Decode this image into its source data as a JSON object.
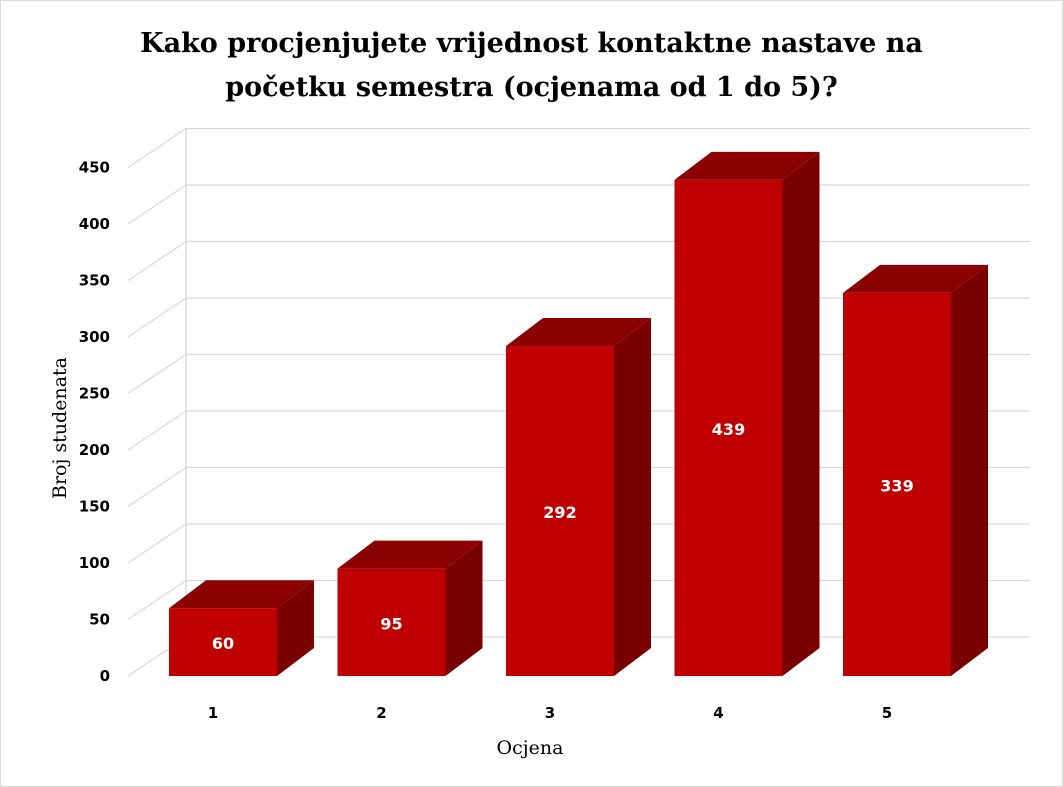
{
  "chart_data": {
    "type": "bar",
    "title_lines": [
      "Kako procjenjujete vrijednost kontaktne nastave na",
      "početku semestra (ocjenama od 1 do 5)?"
    ],
    "categories": [
      "1",
      "2",
      "3",
      "4",
      "5"
    ],
    "values": [
      60,
      95,
      292,
      439,
      339
    ],
    "data_labels": [
      "60",
      "95",
      "292",
      "439",
      "339"
    ],
    "xlabel": "Ocjena",
    "ylabel": "Broj studenata",
    "ylim": [
      0,
      450
    ],
    "yticks": [
      "0",
      "50",
      "100",
      "150",
      "200",
      "250",
      "300",
      "350",
      "400",
      "450"
    ],
    "ytick_values": [
      0,
      50,
      100,
      150,
      200,
      250,
      300,
      350,
      400,
      450
    ],
    "grid": true,
    "legend": "none",
    "bar_style": "3d",
    "colors": {
      "front": "#c00000",
      "top": "#8b0000",
      "side": "#7a0000",
      "grid": "#d9d9d9"
    }
  }
}
